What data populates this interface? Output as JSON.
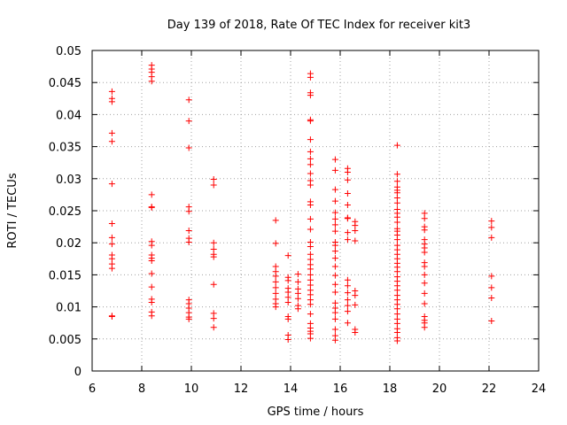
{
  "chart_data": {
    "type": "scatter",
    "title": "Day 139 of 2018, Rate Of TEC Index for receiver kit3",
    "xlabel": "GPS time / hours",
    "ylabel": "ROTI / TECUs",
    "xlim": [
      6,
      24
    ],
    "ylim": [
      0,
      0.05
    ],
    "xticks": [
      6,
      8,
      10,
      12,
      14,
      16,
      18,
      20,
      22,
      24
    ],
    "yticks": [
      0,
      0.005,
      0.01,
      0.015,
      0.02,
      0.025,
      0.03,
      0.035,
      0.04,
      0.045,
      0.05
    ],
    "xtick_labels": [
      "6",
      "8",
      "10",
      "12",
      "14",
      "16",
      "18",
      "20",
      "22",
      "24"
    ],
    "ytick_labels": [
      "0",
      "0.005",
      "0.01",
      "0.015",
      "0.02",
      "0.025",
      "0.03",
      "0.035",
      "0.04",
      "0.045",
      "0.05"
    ],
    "grid": true,
    "marker": "+",
    "color": "#ff0000",
    "series": [
      {
        "name": "ROTI",
        "clusters": [
          {
            "x": 6.8,
            "y": [
              0.0436,
              0.0425,
              0.042,
              0.0371,
              0.0358,
              0.0292,
              0.023,
              0.0208,
              0.0198,
              0.0181,
              0.0175,
              0.0167,
              0.016,
              0.0086,
              0.0085
            ]
          },
          {
            "x": 8.4,
            "y": [
              0.0477,
              0.0471,
              0.0466,
              0.0459,
              0.0452,
              0.0275,
              0.0256,
              0.0255,
              0.0202,
              0.0196,
              0.0181,
              0.0176,
              0.0172,
              0.0152,
              0.0131,
              0.0112,
              0.0107,
              0.0092,
              0.0086
            ]
          },
          {
            "x": 9.9,
            "y": [
              0.0423,
              0.039,
              0.0348,
              0.0256,
              0.0249,
              0.0219,
              0.0207,
              0.0201,
              0.0111,
              0.0105,
              0.0098,
              0.0091,
              0.0084,
              0.0081
            ]
          },
          {
            "x": 10.9,
            "y": [
              0.0299,
              0.029,
              0.02,
              0.019,
              0.0182,
              0.0178,
              0.0135,
              0.009,
              0.0082,
              0.0068
            ]
          },
          {
            "x": 13.4,
            "y": [
              0.0235,
              0.0199,
              0.0163,
              0.0155,
              0.0148,
              0.0139,
              0.013,
              0.0121,
              0.0112,
              0.0105,
              0.01
            ]
          },
          {
            "x": 13.9,
            "y": [
              0.018,
              0.0146,
              0.0141,
              0.0129,
              0.0123,
              0.0115,
              0.0107,
              0.0085,
              0.0081,
              0.0056,
              0.0049
            ]
          },
          {
            "x": 14.3,
            "y": [
              0.0151,
              0.0139,
              0.0128,
              0.0121,
              0.0113,
              0.0102,
              0.0097
            ]
          },
          {
            "x": 14.8,
            "y": [
              0.0464,
              0.0458,
              0.0434,
              0.043,
              0.0392,
              0.039,
              0.0361,
              0.0342,
              0.0331,
              0.0322,
              0.0308,
              0.0297,
              0.029,
              0.0264,
              0.0259,
              0.0237,
              0.0221,
              0.0201,
              0.0194,
              0.0182,
              0.0174,
              0.0166,
              0.0159,
              0.015,
              0.0142,
              0.0134,
              0.0126,
              0.0119,
              0.0111,
              0.0104,
              0.0089,
              0.0074,
              0.0067,
              0.0062,
              0.0058,
              0.0051
            ]
          },
          {
            "x": 15.8,
            "y": [
              0.033,
              0.0313,
              0.0283,
              0.0265,
              0.0247,
              0.0237,
              0.0228,
              0.0218,
              0.0201,
              0.0196,
              0.0187,
              0.0176,
              0.0163,
              0.0149,
              0.0135,
              0.0123,
              0.0106,
              0.0098,
              0.0091,
              0.0081,
              0.0065,
              0.0055,
              0.0048
            ]
          },
          {
            "x": 16.3,
            "y": [
              0.0316,
              0.031,
              0.0298,
              0.0277,
              0.0259,
              0.0239,
              0.0238,
              0.0216,
              0.0205,
              0.0142,
              0.0133,
              0.0122,
              0.0111,
              0.0102,
              0.0093,
              0.0075
            ]
          },
          {
            "x": 16.6,
            "y": [
              0.0233,
              0.0227,
              0.0219,
              0.0203,
              0.0125,
              0.0118,
              0.0103,
              0.0065,
              0.006
            ]
          },
          {
            "x": 18.3,
            "y": [
              0.0352,
              0.0307,
              0.0296,
              0.0287,
              0.0282,
              0.0278,
              0.027,
              0.0262,
              0.0252,
              0.0246,
              0.024,
              0.0232,
              0.0222,
              0.0218,
              0.0212,
              0.0205,
              0.0196,
              0.0189,
              0.0182,
              0.0175,
              0.0168,
              0.0162,
              0.0155,
              0.0147,
              0.014,
              0.0133,
              0.0126,
              0.0118,
              0.0111,
              0.0104,
              0.0097,
              0.0089,
              0.0081,
              0.0074,
              0.0066,
              0.006,
              0.0052,
              0.0047
            ]
          },
          {
            "x": 19.4,
            "y": [
              0.0246,
              0.0238,
              0.0225,
              0.022,
              0.0205,
              0.0198,
              0.0192,
              0.0185,
              0.0169,
              0.0163,
              0.015,
              0.0137,
              0.0121,
              0.0105,
              0.0085,
              0.0079,
              0.0075,
              0.0068
            ]
          },
          {
            "x": 22.1,
            "y": [
              0.0234,
              0.0224,
              0.0208,
              0.0148,
              0.013,
              0.0114,
              0.0078
            ]
          }
        ]
      }
    ]
  }
}
